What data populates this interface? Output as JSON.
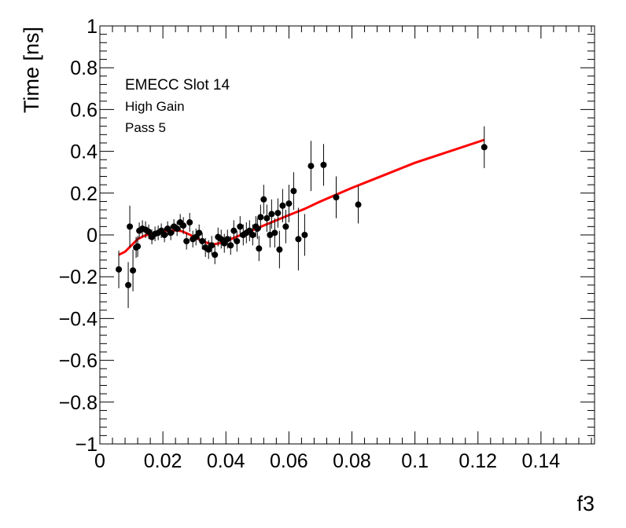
{
  "chart_data": {
    "type": "scatter",
    "xlabel": "f3",
    "ylabel": "Time [ns]",
    "xlim": [
      0,
      0.157
    ],
    "ylim": [
      -1,
      1
    ],
    "x_ticks": [
      0,
      0.02,
      0.04,
      0.06,
      0.08,
      0.1,
      0.12,
      0.14
    ],
    "x_tick_labels": [
      "0",
      "0.02",
      "0.04",
      "0.06",
      "0.08",
      "0.1",
      "0.12",
      "0.14"
    ],
    "y_ticks": [
      -1,
      -0.8,
      -0.6,
      -0.4,
      -0.2,
      0,
      0.2,
      0.4,
      0.6,
      0.8,
      1
    ],
    "y_tick_labels": [
      "−1",
      "−0.8",
      "−0.6",
      "−0.4",
      "−0.2",
      "0",
      "0.2",
      "0.4",
      "0.6",
      "0.8",
      "1"
    ],
    "grid": false,
    "annotations": [
      "EMECC Slot 14",
      "High Gain",
      "Pass 5"
    ],
    "series": [
      {
        "kind": "points",
        "color": "#000000",
        "points": [
          {
            "x": 0.006,
            "y": -0.165,
            "err": 0.09
          },
          {
            "x": 0.009,
            "y": -0.24,
            "err": 0.11
          },
          {
            "x": 0.0095,
            "y": 0.04,
            "err": 0.1
          },
          {
            "x": 0.0105,
            "y": -0.17,
            "err": 0.1
          },
          {
            "x": 0.0115,
            "y": -0.06,
            "err": 0.05
          },
          {
            "x": 0.012,
            "y": -0.055,
            "err": 0.05
          },
          {
            "x": 0.0125,
            "y": 0.02,
            "err": 0.04
          },
          {
            "x": 0.0135,
            "y": 0.03,
            "err": 0.04
          },
          {
            "x": 0.0145,
            "y": 0.025,
            "err": 0.04
          },
          {
            "x": 0.0155,
            "y": 0.015,
            "err": 0.035
          },
          {
            "x": 0.0165,
            "y": -0.01,
            "err": 0.035
          },
          {
            "x": 0.0175,
            "y": 0.005,
            "err": 0.035
          },
          {
            "x": 0.0185,
            "y": 0.01,
            "err": 0.035
          },
          {
            "x": 0.0195,
            "y": 0.02,
            "err": 0.035
          },
          {
            "x": 0.0205,
            "y": 0.0,
            "err": 0.035
          },
          {
            "x": 0.0215,
            "y": 0.03,
            "err": 0.035
          },
          {
            "x": 0.0225,
            "y": 0.01,
            "err": 0.035
          },
          {
            "x": 0.0235,
            "y": 0.04,
            "err": 0.035
          },
          {
            "x": 0.0245,
            "y": 0.03,
            "err": 0.035
          },
          {
            "x": 0.0255,
            "y": 0.06,
            "err": 0.04
          },
          {
            "x": 0.0265,
            "y": 0.045,
            "err": 0.04
          },
          {
            "x": 0.0275,
            "y": -0.03,
            "err": 0.04
          },
          {
            "x": 0.0285,
            "y": 0.06,
            "err": 0.045
          },
          {
            "x": 0.0295,
            "y": -0.02,
            "err": 0.04
          },
          {
            "x": 0.0305,
            "y": -0.01,
            "err": 0.04
          },
          {
            "x": 0.0315,
            "y": 0.01,
            "err": 0.04
          },
          {
            "x": 0.0325,
            "y": -0.03,
            "err": 0.04
          },
          {
            "x": 0.0335,
            "y": -0.06,
            "err": 0.045
          },
          {
            "x": 0.0345,
            "y": -0.07,
            "err": 0.045
          },
          {
            "x": 0.0355,
            "y": -0.05,
            "err": 0.045
          },
          {
            "x": 0.0365,
            "y": -0.095,
            "err": 0.045
          },
          {
            "x": 0.0375,
            "y": -0.01,
            "err": 0.045
          },
          {
            "x": 0.0385,
            "y": -0.02,
            "err": 0.045
          },
          {
            "x": 0.0395,
            "y": -0.04,
            "err": 0.045
          },
          {
            "x": 0.0405,
            "y": -0.02,
            "err": 0.045
          },
          {
            "x": 0.0415,
            "y": -0.05,
            "err": 0.045
          },
          {
            "x": 0.0425,
            "y": 0.02,
            "err": 0.05
          },
          {
            "x": 0.0435,
            "y": -0.03,
            "err": 0.05
          },
          {
            "x": 0.0445,
            "y": 0.04,
            "err": 0.05
          },
          {
            "x": 0.0455,
            "y": 0.0,
            "err": 0.05
          },
          {
            "x": 0.0465,
            "y": 0.01,
            "err": 0.05
          },
          {
            "x": 0.0475,
            "y": 0.02,
            "err": 0.05
          },
          {
            "x": 0.0485,
            "y": 0.0,
            "err": 0.05
          },
          {
            "x": 0.0495,
            "y": 0.04,
            "err": 0.05
          },
          {
            "x": 0.05,
            "y": 0.03,
            "err": 0.05
          },
          {
            "x": 0.0505,
            "y": -0.065,
            "err": 0.06
          },
          {
            "x": 0.051,
            "y": 0.085,
            "err": 0.06
          },
          {
            "x": 0.052,
            "y": 0.17,
            "err": 0.07
          },
          {
            "x": 0.053,
            "y": 0.08,
            "err": 0.065
          },
          {
            "x": 0.054,
            "y": 0.0,
            "err": 0.06
          },
          {
            "x": 0.0545,
            "y": 0.1,
            "err": 0.07
          },
          {
            "x": 0.0555,
            "y": 0.01,
            "err": 0.07
          },
          {
            "x": 0.0565,
            "y": 0.105,
            "err": 0.07
          },
          {
            "x": 0.057,
            "y": -0.07,
            "err": 0.09
          },
          {
            "x": 0.058,
            "y": 0.14,
            "err": 0.08
          },
          {
            "x": 0.059,
            "y": 0.04,
            "err": 0.08
          },
          {
            "x": 0.06,
            "y": 0.15,
            "err": 0.09
          },
          {
            "x": 0.0615,
            "y": 0.21,
            "err": 0.09
          },
          {
            "x": 0.063,
            "y": -0.02,
            "err": 0.15
          },
          {
            "x": 0.065,
            "y": 0.0,
            "err": 0.1
          },
          {
            "x": 0.067,
            "y": 0.33,
            "err": 0.12
          },
          {
            "x": 0.071,
            "y": 0.335,
            "err": 0.1
          },
          {
            "x": 0.075,
            "y": 0.18,
            "err": 0.1
          },
          {
            "x": 0.082,
            "y": 0.145,
            "err": 0.09
          },
          {
            "x": 0.122,
            "y": 0.42,
            "err": 0.1
          }
        ]
      },
      {
        "kind": "fit",
        "color": "#ff0000",
        "x": [
          0.006,
          0.008,
          0.01,
          0.012,
          0.014,
          0.016,
          0.018,
          0.02,
          0.022,
          0.024,
          0.026,
          0.028,
          0.03,
          0.032,
          0.034,
          0.036,
          0.038,
          0.04,
          0.044,
          0.048,
          0.052,
          0.056,
          0.06,
          0.065,
          0.07,
          0.08,
          0.09,
          0.1,
          0.11,
          0.122
        ],
        "y": [
          -0.095,
          -0.08,
          -0.05,
          -0.02,
          -0.005,
          0.005,
          0.012,
          0.017,
          0.02,
          0.022,
          0.018,
          0.005,
          -0.01,
          -0.025,
          -0.038,
          -0.045,
          -0.04,
          -0.03,
          -0.005,
          0.02,
          0.045,
          0.07,
          0.095,
          0.125,
          0.16,
          0.225,
          0.285,
          0.345,
          0.395,
          0.455
        ]
      }
    ]
  }
}
